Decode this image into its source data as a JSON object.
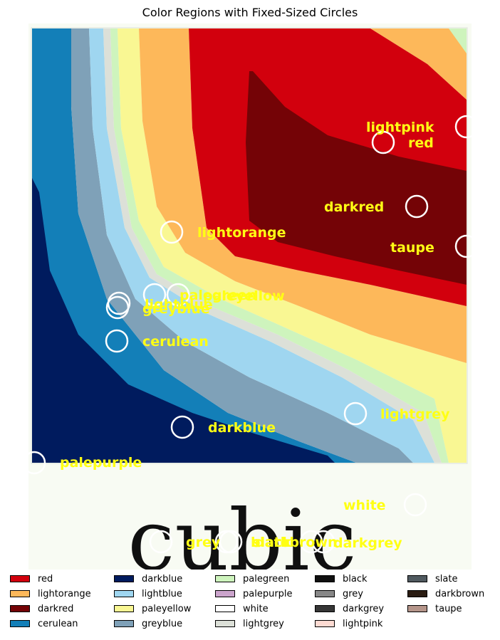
{
  "chart_data": {
    "type": "heatmap",
    "title": "Color Regions with Fixed-Sized Circles",
    "xlabel": "",
    "ylabel": "",
    "grid": false,
    "legend_placement": "bottom",
    "image_text": "cubic",
    "palette": {
      "red": "#d2000d",
      "lightorange": "#fdb85a",
      "darkred": "#740306",
      "cerulean": "#137fb8",
      "darkblue": "#001b5e",
      "lightblue": "#9fd6f0",
      "paleyellow": "#f9f793",
      "greyblue": "#7fa1b8",
      "palegreen": "#cef4bd",
      "palepurple": "#cba4cc",
      "white": "#ffffff",
      "lightgrey": "#dce0d8",
      "black": "#101010",
      "grey": "#878787",
      "darkgrey": "#363636",
      "lightpink": "#fcdad2",
      "slate": "#505a60",
      "darkbrown": "#2a1c12",
      "taupe": "#b5958a",
      "background": "#f8fbf3",
      "label_color": "#ffff14"
    },
    "legend": [
      [
        "red",
        "lightorange",
        "darkred",
        "cerulean"
      ],
      [
        "darkblue",
        "lightblue",
        "paleyellow",
        "greyblue"
      ],
      [
        "palegreen",
        "palepurple",
        "white",
        "lightgrey"
      ],
      [
        "black",
        "grey",
        "darkgrey",
        "lightpink"
      ],
      [
        "slate",
        "darkbrown",
        "taupe"
      ]
    ],
    "circles": [
      {
        "label": "lightpink"
      },
      {
        "label": "red"
      },
      {
        "label": "darkred"
      },
      {
        "label": "lightorange"
      },
      {
        "label": "taupe"
      },
      {
        "label": "paleyellow"
      },
      {
        "label": "palegreen"
      },
      {
        "label": "lightblue"
      },
      {
        "label": "greyblue"
      },
      {
        "label": "cerulean"
      },
      {
        "label": "lightgrey"
      },
      {
        "label": "darkblue"
      },
      {
        "label": "palepurple"
      },
      {
        "label": "white"
      },
      {
        "label": "grey"
      },
      {
        "label": "black"
      },
      {
        "label": "slate"
      },
      {
        "label": "darkbrown"
      },
      {
        "label": "darkgrey"
      }
    ]
  }
}
